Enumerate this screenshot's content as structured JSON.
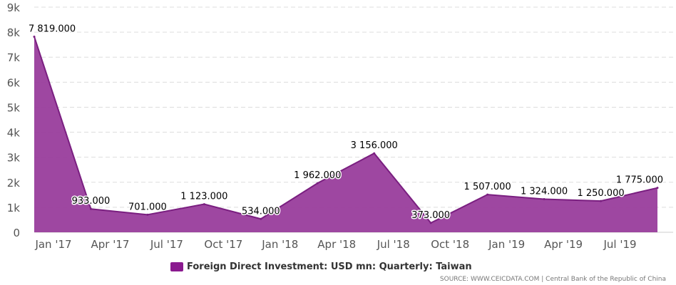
{
  "chart_data": {
    "type": "area",
    "x": [
      "2017-01",
      "2017-04",
      "2017-07",
      "2017-10",
      "2018-01",
      "2018-04",
      "2018-07",
      "2018-10",
      "2019-01",
      "2019-04",
      "2019-07",
      "2019-10"
    ],
    "x_tick_labels": [
      "Jan '17",
      "Apr '17",
      "Jul '17",
      "Oct '17",
      "Jan '18",
      "Apr '18",
      "Jul '18",
      "Oct '18",
      "Jan '19",
      "Apr '19",
      "Jul '19"
    ],
    "series": [
      {
        "name": "Foreign Direct Investment: USD mn: Quarterly: Taiwan",
        "values": [
          7819,
          933,
          701,
          1123,
          534,
          1962,
          3156,
          373,
          1507,
          1324,
          1250,
          1775
        ],
        "data_labels": [
          "7 819.000",
          "933.000",
          "701.000",
          "1 123.000",
          "534.000",
          "1 962.000",
          "3 156.000",
          "373.000",
          "1 507.000",
          "1 324.000",
          "1 250.000",
          "1 775.000"
        ]
      }
    ],
    "y_ticks": [
      0,
      1000,
      2000,
      3000,
      4000,
      5000,
      6000,
      7000,
      8000,
      9000
    ],
    "y_tick_labels": [
      "0",
      "1k",
      "2k",
      "3k",
      "4k",
      "5k",
      "6k",
      "7k",
      "8k",
      "9k"
    ],
    "ylim": [
      0,
      9000
    ],
    "grid": true,
    "legend_position": "bottom-center",
    "colors": {
      "fill": "#993d9c",
      "line": "#7a1f80",
      "grid": "#dddddd"
    }
  },
  "legend": {
    "label": "Foreign Direct Investment: USD mn: Quarterly: Taiwan",
    "color": "#8a1a8f"
  },
  "source": "SOURCE: WWW.CEICDATA.COM | Central Bank of the Republic of China"
}
